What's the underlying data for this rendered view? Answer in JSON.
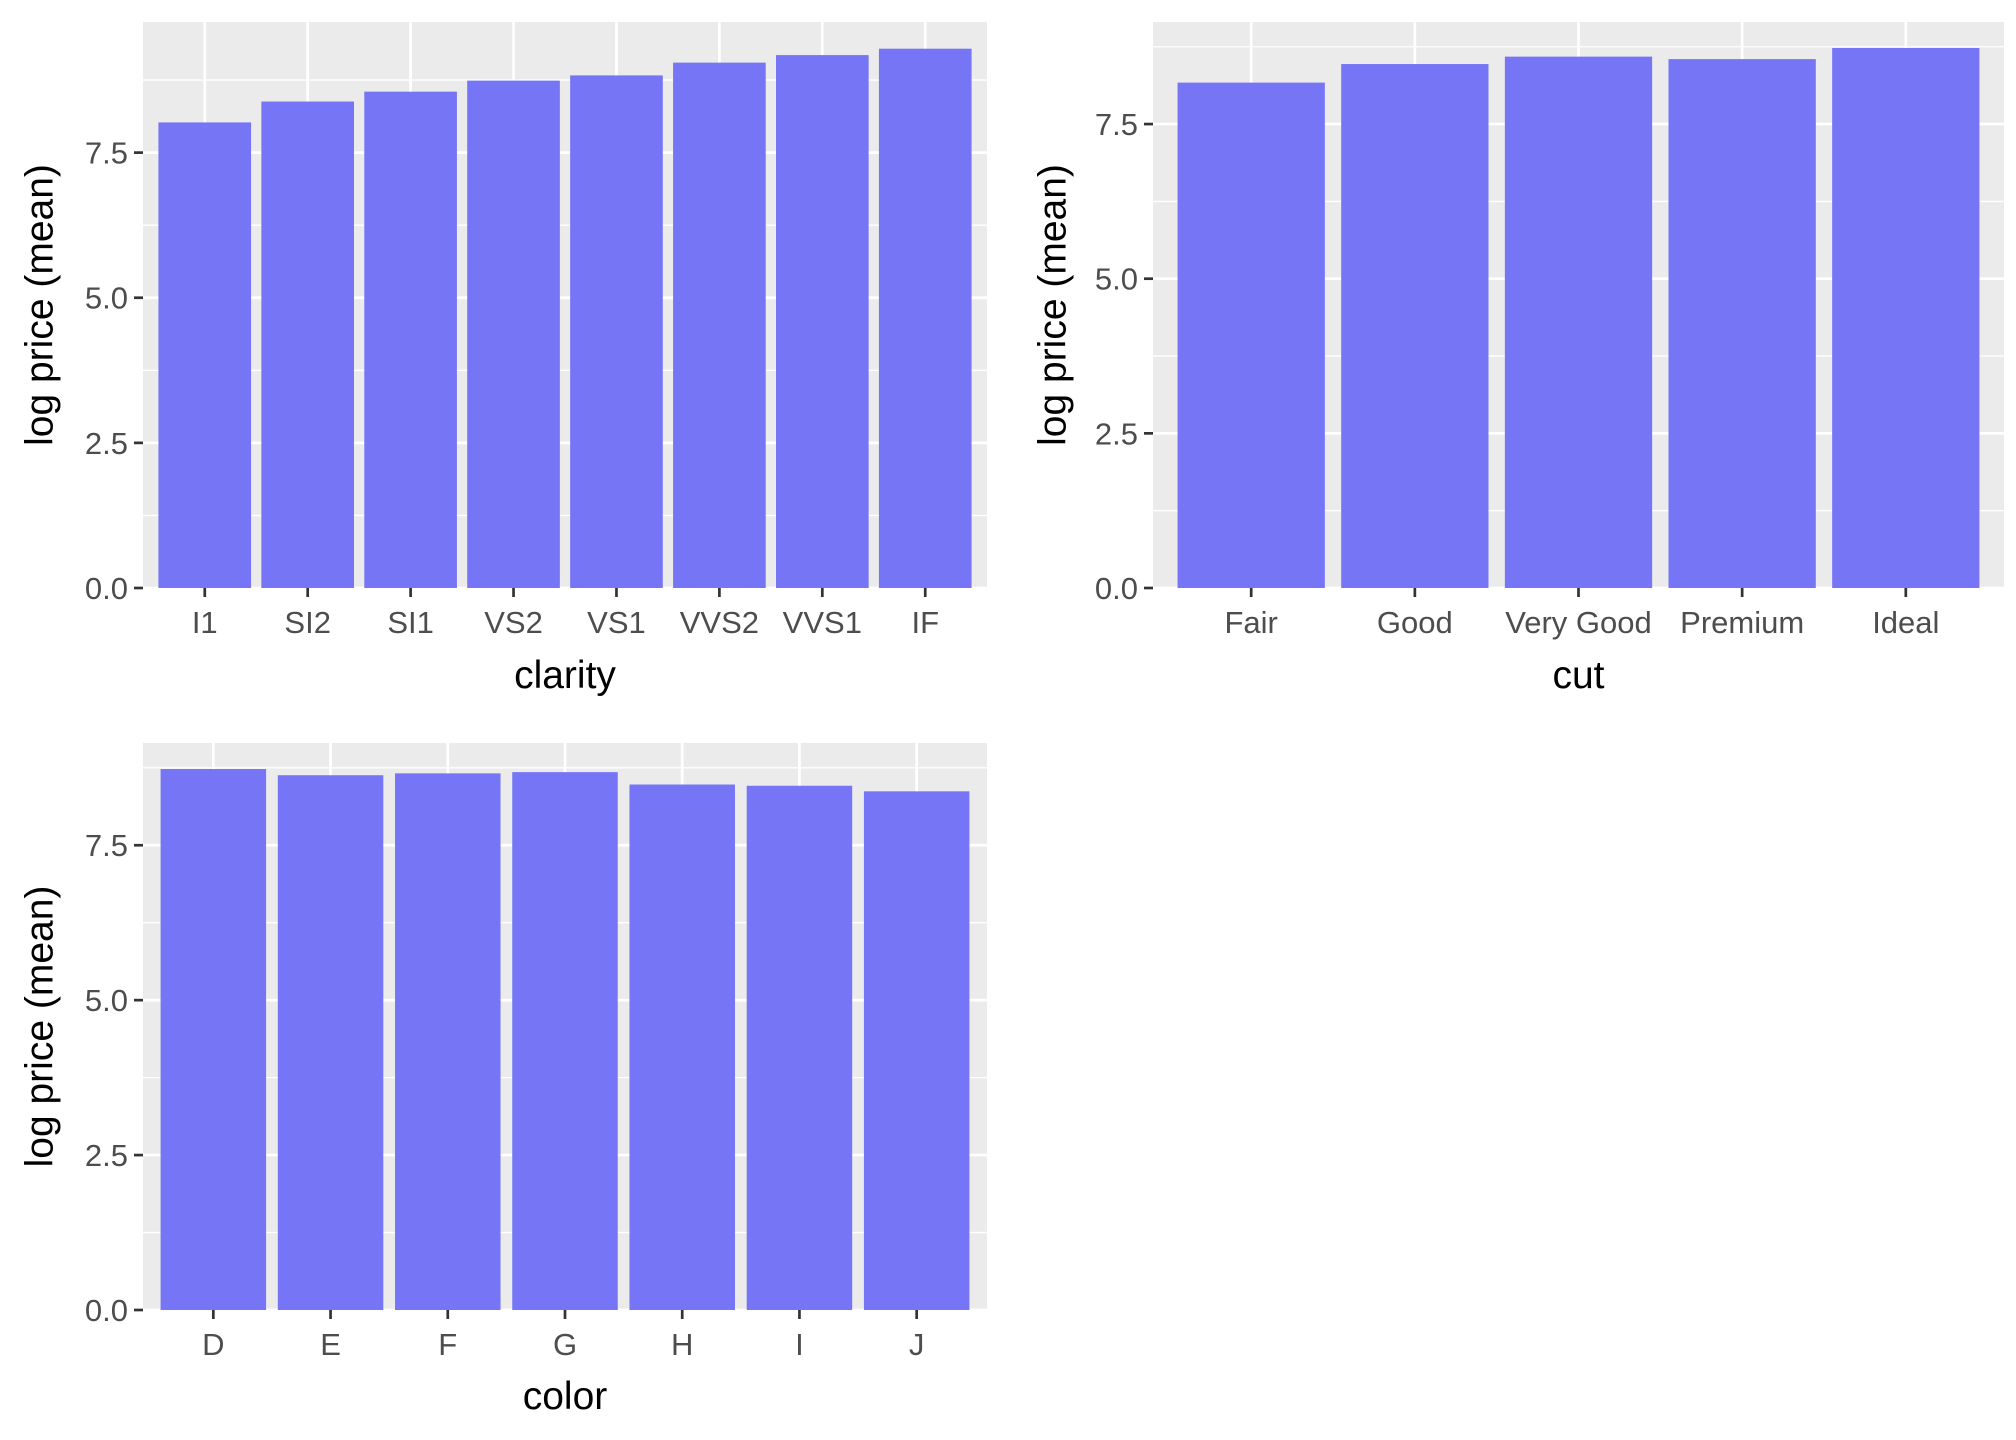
{
  "chart_data": [
    {
      "type": "bar",
      "xlabel": "clarity",
      "ylabel": "log price (mean)",
      "categories": [
        "I1",
        "SI2",
        "SI1",
        "VS2",
        "VS1",
        "VVS2",
        "VVS1",
        "IF"
      ],
      "values": [
        8.02,
        8.38,
        8.55,
        8.74,
        8.83,
        9.05,
        9.18,
        9.29
      ],
      "ylim": [
        0,
        9.75
      ],
      "yticks": [
        "0.0",
        "2.5",
        "5.0",
        "7.5"
      ],
      "bar_color": "#7575f5",
      "panel_color": "#ebebeb",
      "grid": true
    },
    {
      "type": "bar",
      "xlabel": "cut",
      "ylabel": "log price (mean)",
      "categories": [
        "Fair",
        "Good",
        "Very Good",
        "Premium",
        "Ideal"
      ],
      "values": [
        8.17,
        8.47,
        8.59,
        8.55,
        8.73
      ],
      "ylim": [
        0,
        9.15
      ],
      "yticks": [
        "0.0",
        "2.5",
        "5.0",
        "7.5"
      ],
      "bar_color": "#7575f5",
      "panel_color": "#ebebeb",
      "grid": true
    },
    {
      "type": "bar",
      "xlabel": "color",
      "ylabel": "log price (mean)",
      "categories": [
        "D",
        "E",
        "F",
        "G",
        "H",
        "I",
        "J"
      ],
      "values": [
        8.73,
        8.63,
        8.66,
        8.68,
        8.48,
        8.46,
        8.37
      ],
      "ylim": [
        0,
        9.15
      ],
      "yticks": [
        "0.0",
        "2.5",
        "5.0",
        "7.5"
      ],
      "bar_color": "#7575f5",
      "panel_color": "#ebebeb",
      "grid": true
    }
  ]
}
